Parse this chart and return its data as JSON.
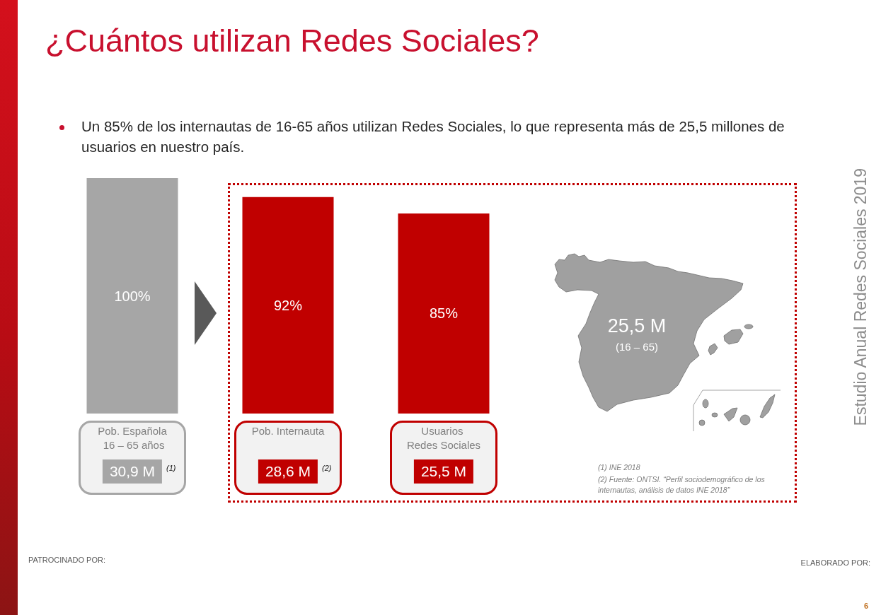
{
  "chart_data": {
    "type": "bar",
    "title": "¿Cuántos utilizan Redes Sociales?",
    "subtitle": "Un 85% de los internautas de 16-65 años utilizan Redes Sociales, lo que representa más de 25,5 millones de usuarios en nuestro país.",
    "categories": [
      "Pob. Española 16 – 65 años",
      "Pob. Internauta",
      "Usuarios Redes Sociales"
    ],
    "values": [
      100,
      92,
      85
    ],
    "colors": [
      "#a6a6a6",
      "#c00000",
      "#c00000"
    ],
    "value_labels": [
      "100%",
      "92%",
      "85%"
    ],
    "ylim": [
      0,
      100
    ],
    "tick_labels": "x",
    "annotations": [
      "30,9 M",
      "(1)",
      "28,6 M",
      "(2)",
      "25,5 M",
      "25,5 M",
      "(16 – 65)",
      "(1) INE 2018",
      "(2) Fuente: ONTSI. “Perfil sociodemográfico de los internautas, análisis de datos INE 2018”",
      "Estudio Anual Redes Sociales 2019",
      "PATROCINADO POR:",
      "ELABORADO POR:",
      "6"
    ]
  }
}
